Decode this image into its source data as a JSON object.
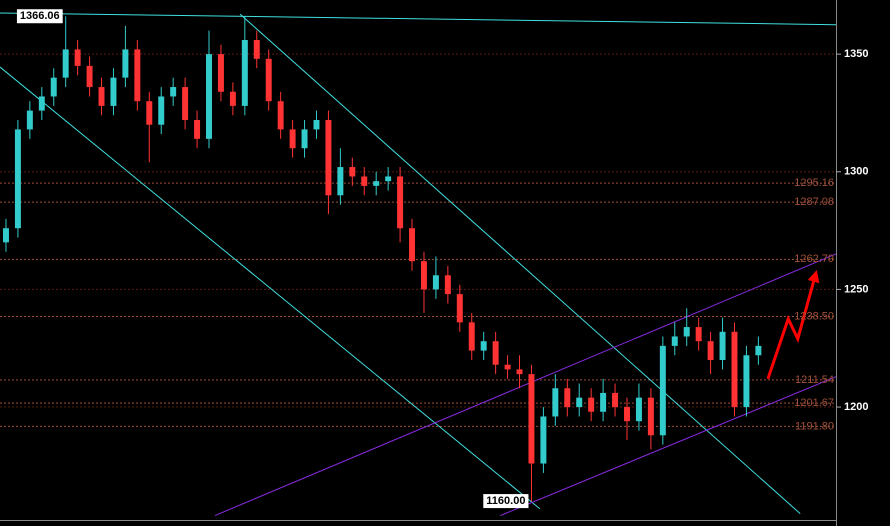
{
  "chart_data": {
    "type": "candlestick",
    "ylim": [
      1152,
      1373
    ],
    "yticks": [
      1200,
      1250,
      1300,
      1350
    ],
    "xlim": [
      0,
      70
    ],
    "up_color": "#33cccc",
    "down_color": "#ff3333",
    "grid": true,
    "candles": [
      [
        1270,
        1280,
        1266,
        1276
      ],
      [
        1276,
        1322,
        1272,
        1318
      ],
      [
        1318,
        1330,
        1314,
        1326
      ],
      [
        1326,
        1336,
        1322,
        1332
      ],
      [
        1332,
        1344,
        1328,
        1340
      ],
      [
        1340,
        1366.06,
        1336,
        1352
      ],
      [
        1352,
        1356,
        1341,
        1345
      ],
      [
        1345,
        1349,
        1332,
        1336
      ],
      [
        1336,
        1340,
        1324,
        1328
      ],
      [
        1328,
        1344,
        1324,
        1340
      ],
      [
        1340,
        1362,
        1336,
        1352
      ],
      [
        1352,
        1356,
        1326,
        1330
      ],
      [
        1330,
        1334,
        1304,
        1320
      ],
      [
        1320,
        1336,
        1316,
        1332
      ],
      [
        1332,
        1340,
        1328,
        1336
      ],
      [
        1336,
        1340,
        1318,
        1322
      ],
      [
        1322,
        1326,
        1310,
        1314
      ],
      [
        1314,
        1360,
        1310,
        1350
      ],
      [
        1350,
        1354,
        1330,
        1334
      ],
      [
        1334,
        1338,
        1324,
        1328
      ],
      [
        1328,
        1366,
        1324,
        1356
      ],
      [
        1356,
        1360,
        1344,
        1348
      ],
      [
        1348,
        1352,
        1326,
        1330
      ],
      [
        1330,
        1334,
        1314,
        1318
      ],
      [
        1318,
        1322,
        1306,
        1310
      ],
      [
        1310,
        1322,
        1306,
        1318
      ],
      [
        1318,
        1326,
        1314,
        1322
      ],
      [
        1322,
        1326,
        1282,
        1290
      ],
      [
        1290,
        1310,
        1286,
        1302
      ],
      [
        1302,
        1306,
        1294,
        1298
      ],
      [
        1298,
        1302,
        1290,
        1294
      ],
      [
        1294,
        1300,
        1290,
        1296
      ],
      [
        1296,
        1302,
        1292,
        1298
      ],
      [
        1298,
        1302,
        1270,
        1276
      ],
      [
        1276,
        1280,
        1258,
        1262
      ],
      [
        1262,
        1266,
        1240,
        1250
      ],
      [
        1250,
        1264,
        1246,
        1256
      ],
      [
        1256,
        1260,
        1244,
        1248
      ],
      [
        1248,
        1252,
        1232,
        1236
      ],
      [
        1236,
        1240,
        1220,
        1224
      ],
      [
        1224,
        1232,
        1220,
        1228
      ],
      [
        1228,
        1232,
        1214,
        1218
      ],
      [
        1218,
        1222,
        1212,
        1216
      ],
      [
        1216,
        1222,
        1208,
        1214
      ],
      [
        1214,
        1218,
        1160,
        1176
      ],
      [
        1176,
        1200,
        1172,
        1196
      ],
      [
        1196,
        1214,
        1192,
        1208
      ],
      [
        1208,
        1212,
        1196,
        1200
      ],
      [
        1200,
        1210,
        1196,
        1204
      ],
      [
        1204,
        1208,
        1194,
        1198
      ],
      [
        1198,
        1212,
        1194,
        1206
      ],
      [
        1206,
        1210,
        1196,
        1200
      ],
      [
        1200,
        1204,
        1186,
        1194
      ],
      [
        1194,
        1210,
        1190,
        1204
      ],
      [
        1204,
        1208,
        1182,
        1188
      ],
      [
        1188,
        1230,
        1184,
        1226
      ],
      [
        1226,
        1236,
        1222,
        1230
      ],
      [
        1230,
        1242,
        1226,
        1234
      ],
      [
        1234,
        1238,
        1224,
        1228
      ],
      [
        1228,
        1232,
        1214,
        1220
      ],
      [
        1220,
        1238,
        1216,
        1232
      ],
      [
        1232,
        1236,
        1196,
        1200
      ],
      [
        1200,
        1226,
        1196,
        1222
      ],
      [
        1222,
        1230,
        1218,
        1226
      ]
    ],
    "level_color": "#a0503a",
    "levels": [
      1295.16,
      1287.08,
      {
        "value": 1262.79,
        "label": "1262.79"
      },
      {
        "value": 1238.5,
        "label": "1238.50"
      },
      {
        "value": 1211.54,
        "label": "1211.54"
      },
      {
        "value": 1201.67,
        "label": "1201.67"
      },
      {
        "value": 1191.8,
        "label": "1191.80"
      }
    ],
    "annotations": [
      {
        "x": 5.5,
        "value": 1366.06,
        "label": "1366.06"
      },
      {
        "x": 44.5,
        "value": 1160,
        "label": "1160.00"
      }
    ],
    "trendlines": [
      {
        "color": "#40e0e0",
        "x": [
          0,
          70
        ],
        "y": [
          1367.5,
          1362.5
        ]
      },
      {
        "color": "#40e0e0",
        "x": [
          0,
          45.2
        ],
        "y": [
          1344.5,
          1156.8
        ]
      },
      {
        "color": "#40e0e0",
        "x": [
          20.1,
          67.0
        ],
        "y": [
          1367.0,
          1154.7
        ]
      },
      {
        "color": "#8a2be2",
        "x": [
          18.0,
          70
        ],
        "y": [
          1153.9,
          1265.1
        ]
      },
      {
        "color": "#8a2be2",
        "x": [
          41.9,
          70
        ],
        "y": [
          1153.9,
          1212.9
        ]
      }
    ],
    "arrow": {
      "color": "#ff0000",
      "x": [
        64.3,
        66.0,
        66.8,
        68.3
      ],
      "y": [
        1212.0,
        1237.5,
        1229.0,
        1256.6
      ]
    }
  }
}
